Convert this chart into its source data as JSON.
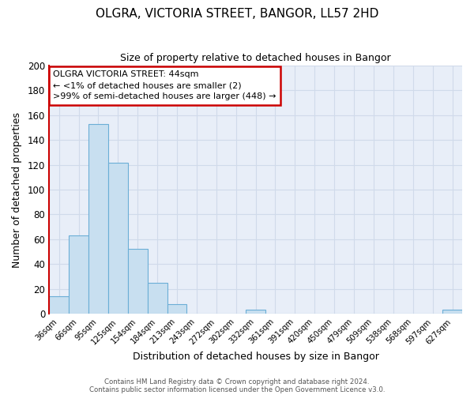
{
  "title": "OLGRA, VICTORIA STREET, BANGOR, LL57 2HD",
  "subtitle": "Size of property relative to detached houses in Bangor",
  "xlabel": "Distribution of detached houses by size in Bangor",
  "ylabel": "Number of detached properties",
  "bin_labels": [
    "36sqm",
    "66sqm",
    "95sqm",
    "125sqm",
    "154sqm",
    "184sqm",
    "213sqm",
    "243sqm",
    "272sqm",
    "302sqm",
    "332sqm",
    "361sqm",
    "391sqm",
    "420sqm",
    "450sqm",
    "479sqm",
    "509sqm",
    "538sqm",
    "568sqm",
    "597sqm",
    "627sqm"
  ],
  "bar_values": [
    14,
    63,
    153,
    122,
    52,
    25,
    8,
    0,
    0,
    0,
    3,
    0,
    0,
    0,
    0,
    0,
    0,
    0,
    0,
    0,
    3
  ],
  "bar_color": "#c8dff0",
  "bar_edge_color": "#6baed6",
  "ylim": [
    0,
    200
  ],
  "yticks": [
    0,
    20,
    40,
    60,
    80,
    100,
    120,
    140,
    160,
    180,
    200
  ],
  "annotation_box_text": "OLGRA VICTORIA STREET: 44sqm\n← <1% of detached houses are smaller (2)\n>99% of semi-detached houses are larger (448) →",
  "annotation_box_color": "#ffffff",
  "annotation_box_edge_color": "#cc0000",
  "property_line_color": "#cc0000",
  "grid_color": "#d0daea",
  "background_color": "#e8eef8",
  "footer_line1": "Contains HM Land Registry data © Crown copyright and database right 2024.",
  "footer_line2": "Contains public sector information licensed under the Open Government Licence v3.0."
}
